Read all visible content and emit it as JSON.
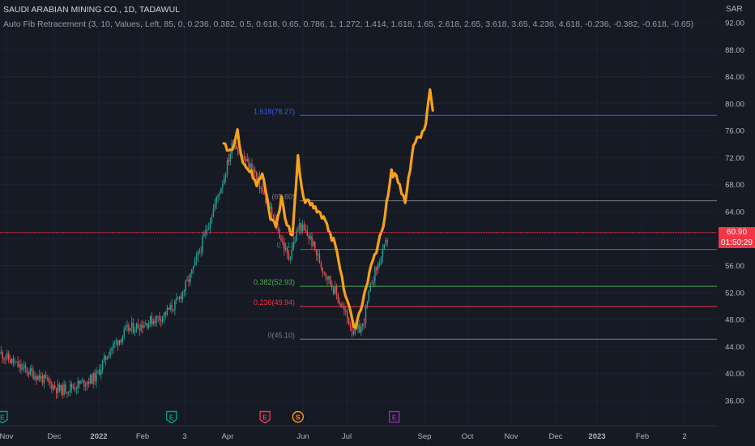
{
  "header": {
    "title": "SAUDI ARABIAN MINING CO., 1D, TADAWUL",
    "indicator": "Auto Fib Retracement (3, 10, Values, Left, 85, 0, 0.236, 0.382, 0.5, 0.618, 0.65, 0.786, 1, 1.272, 1.414, 1.618, 1.65, 2.618, 2.65, 3.618, 3.65, 4.236, 4.618, -0.236, -0.382, -0.618, -0.65)",
    "currency": "SAR"
  },
  "price_tag": {
    "price": "60.90",
    "timer": "01:50:29",
    "color": "#f23645"
  },
  "colors": {
    "background": "#161a25",
    "up": "#26a69a",
    "down": "#ef5350",
    "overlay": "#f7a21b",
    "grid": "#1f2330"
  },
  "chart_data": {
    "type": "candlestick",
    "ylim": [
      34.5,
      93
    ],
    "y_ticks": [
      "36.00",
      "40.00",
      "44.00",
      "48.00",
      "52.00",
      "56.00",
      "60.00",
      "64.00",
      "68.00",
      "72.00",
      "76.00",
      "80.00",
      "84.00",
      "88.00",
      "92.00"
    ],
    "x_ticks": [
      {
        "label": "Nov",
        "bold": false
      },
      {
        "label": "Dec",
        "bold": false
      },
      {
        "label": "2022",
        "bold": true
      },
      {
        "label": "Feb",
        "bold": false
      },
      {
        "label": "3",
        "bold": false
      },
      {
        "label": "Apr",
        "bold": false
      },
      {
        "label": "Jun",
        "bold": false
      },
      {
        "label": "Jul",
        "bold": false
      },
      {
        "label": "Sep",
        "bold": false
      },
      {
        "label": "Oct",
        "bold": false
      },
      {
        "label": "Nov",
        "bold": false
      },
      {
        "label": "Dec",
        "bold": false
      },
      {
        "label": "2023",
        "bold": true
      },
      {
        "label": "Feb",
        "bold": false
      },
      {
        "label": "2",
        "bold": false
      }
    ],
    "candle_path": [
      [
        "2021-10-28",
        43.0
      ],
      [
        "2021-11-10",
        41.0
      ],
      [
        "2021-11-25",
        39.5
      ],
      [
        "2021-12-10",
        37.5
      ],
      [
        "2021-12-25",
        38.5
      ],
      [
        "2022-01-05",
        39.5
      ],
      [
        "2022-01-15",
        43.5
      ],
      [
        "2022-01-28",
        46.5
      ],
      [
        "2022-02-10",
        47.5
      ],
      [
        "2022-02-22",
        48.5
      ],
      [
        "2022-03-05",
        50.5
      ],
      [
        "2022-03-15",
        54.5
      ],
      [
        "2022-03-22",
        58.5
      ],
      [
        "2022-03-30",
        63.5
      ],
      [
        "2022-04-08",
        69.0
      ],
      [
        "2022-04-15",
        74.5
      ],
      [
        "2022-04-22",
        72.0
      ],
      [
        "2022-04-30",
        70.0
      ],
      [
        "2022-05-08",
        66.0
      ],
      [
        "2022-05-18",
        61.0
      ],
      [
        "2022-05-25",
        57.0
      ],
      [
        "2022-06-02",
        62.0
      ],
      [
        "2022-06-10",
        60.0
      ],
      [
        "2022-06-18",
        56.0
      ],
      [
        "2022-06-26",
        53.0
      ],
      [
        "2022-07-05",
        49.0
      ],
      [
        "2022-07-12",
        46.0
      ],
      [
        "2022-07-18",
        47.0
      ],
      [
        "2022-07-25",
        54.0
      ],
      [
        "2022-08-02",
        58.0
      ],
      [
        "2022-08-06",
        60.5
      ]
    ],
    "overlay_series": {
      "color": "#f7a21b",
      "points": [
        [
          "2022-04-08",
          74.0
        ],
        [
          "2022-04-14",
          73.0
        ],
        [
          "2022-04-18",
          76.0
        ],
        [
          "2022-04-22",
          71.0
        ],
        [
          "2022-04-28",
          70.0
        ],
        [
          "2022-05-02",
          68.0
        ],
        [
          "2022-05-06",
          70.0
        ],
        [
          "2022-05-12",
          63.0
        ],
        [
          "2022-05-16",
          62.0
        ],
        [
          "2022-05-20",
          66.0
        ],
        [
          "2022-05-24",
          62.0
        ],
        [
          "2022-05-28",
          60.0
        ],
        [
          "2022-06-01",
          72.0
        ],
        [
          "2022-06-05",
          66.0
        ],
        [
          "2022-06-10",
          65.0
        ],
        [
          "2022-06-16",
          64.0
        ],
        [
          "2022-06-22",
          62.0
        ],
        [
          "2022-06-28",
          59.0
        ],
        [
          "2022-07-03",
          54.0
        ],
        [
          "2022-07-08",
          50.0
        ],
        [
          "2022-07-13",
          46.5
        ],
        [
          "2022-07-18",
          51.0
        ],
        [
          "2022-07-23",
          55.0
        ],
        [
          "2022-07-28",
          58.0
        ],
        [
          "2022-08-02",
          62.0
        ],
        [
          "2022-08-08",
          70.0
        ],
        [
          "2022-08-14",
          68.0
        ],
        [
          "2022-08-18",
          65.0
        ],
        [
          "2022-08-24",
          74.0
        ],
        [
          "2022-08-28",
          75.0
        ],
        [
          "2022-09-02",
          77.0
        ],
        [
          "2022-09-05",
          82.0
        ],
        [
          "2022-09-07",
          79.0
        ]
      ]
    },
    "fib_levels": [
      {
        "ratio": "1.618",
        "label": "1.618(78.27)",
        "value": 78.27,
        "color": "#2962ff"
      },
      {
        "ratio": "",
        "label": "(65.60)",
        "value": 65.6,
        "color": "#787b86"
      },
      {
        "ratio": "0.618",
        "label": "0.618",
        "value": 58.4,
        "color": "#089981"
      },
      {
        "ratio": "0.382",
        "label": "0.382(52.93)",
        "value": 52.93,
        "color": "#4caf50"
      },
      {
        "ratio": "0.236",
        "label": "0.236(49.94)",
        "value": 49.94,
        "color": "#f23645"
      },
      {
        "ratio": "0",
        "label": "0(45.10)",
        "value": 45.1,
        "color": "#787b86"
      }
    ],
    "current_price": 60.9,
    "event_markers": [
      {
        "date": "2021-10-28",
        "letter": "E",
        "color": "#089981",
        "shape": "flag"
      },
      {
        "date": "2022-03-01",
        "letter": "E",
        "color": "#089981",
        "shape": "flag"
      },
      {
        "date": "2022-05-08",
        "letter": "E",
        "color": "#f23645",
        "shape": "flag"
      },
      {
        "date": "2022-06-01",
        "letter": "S",
        "color": "#ff9800",
        "shape": "circle"
      },
      {
        "date": "2022-08-10",
        "letter": "E",
        "color": "#9c27b0",
        "shape": "square"
      }
    ]
  }
}
